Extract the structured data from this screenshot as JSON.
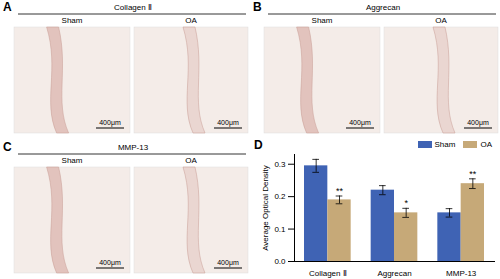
{
  "panels": [
    {
      "label": "A",
      "title": "Collagen Ⅱ",
      "groups": [
        "Sham",
        "OA"
      ],
      "scale_bar": "400μm"
    },
    {
      "label": "B",
      "title": "Aggrecan",
      "groups": [
        "Sham",
        "OA"
      ],
      "scale_bar": "400μm"
    },
    {
      "label": "C",
      "title": "MMP-13",
      "groups": [
        "Sham",
        "OA"
      ],
      "scale_bar": "400μm"
    }
  ],
  "chart_data": {
    "type": "bar",
    "panel_label": "D",
    "categories": [
      "Collagen Ⅱ",
      "Aggrecan",
      "MMP-13"
    ],
    "y_label": "Average Optical Density",
    "series": [
      {
        "name": "Sham",
        "color": "#3f63b4",
        "values": [
          0.295,
          0.22,
          0.15
        ],
        "errors": [
          0.02,
          0.014,
          0.013
        ]
      },
      {
        "name": "OA",
        "color": "#c6a978",
        "values": [
          0.19,
          0.15,
          0.24
        ],
        "errors": [
          0.012,
          0.014,
          0.015
        ],
        "significance": [
          "**",
          "*",
          "**"
        ]
      }
    ],
    "ylim": [
      0,
      0.33
    ],
    "yticks": [
      {
        "value": 0,
        "label": "0.0"
      },
      0.1,
      0.2,
      0.3
    ],
    "legend": "top-right"
  }
}
